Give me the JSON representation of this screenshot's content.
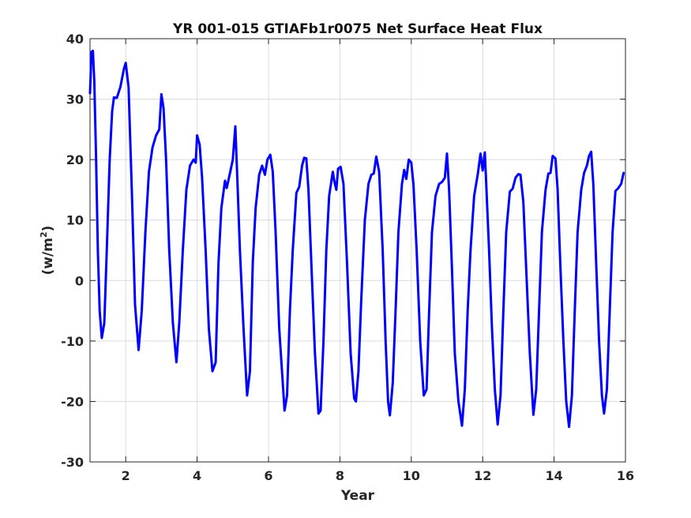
{
  "chart_data": {
    "type": "line",
    "title": "YR 001-015 GTIAFb1r0075 Net Surface Heat Flux",
    "xlabel": "Year",
    "ylabel_text": "(w/m",
    "ylabel_sup": "2",
    "ylabel_close": ")",
    "xlim": [
      1,
      16
    ],
    "ylim": [
      -30,
      40
    ],
    "x_ticks": [
      2,
      4,
      6,
      8,
      10,
      12,
      14,
      16
    ],
    "x_tick_labels": [
      "2",
      "4",
      "6",
      "8",
      "10",
      "12",
      "14",
      "16"
    ],
    "y_ticks": [
      -30,
      -20,
      -10,
      0,
      10,
      20,
      30,
      40
    ],
    "y_tick_labels": [
      "-30",
      "-20",
      "-10",
      "0",
      "10",
      "20",
      "30",
      "40"
    ],
    "grid": true,
    "series": [
      {
        "color": "#0000ff",
        "points": [
          [
            1.0,
            31
          ],
          [
            1.04,
            37.8
          ],
          [
            1.08,
            38
          ],
          [
            1.12,
            33
          ],
          [
            1.17,
            20
          ],
          [
            1.22,
            5
          ],
          [
            1.27,
            -5
          ],
          [
            1.33,
            -9.5
          ],
          [
            1.4,
            -7
          ],
          [
            1.47,
            5
          ],
          [
            1.55,
            20
          ],
          [
            1.62,
            28
          ],
          [
            1.67,
            30.3
          ],
          [
            1.75,
            30.2
          ],
          [
            1.85,
            32
          ],
          [
            1.95,
            35
          ],
          [
            2.0,
            36
          ],
          [
            2.08,
            32
          ],
          [
            2.17,
            15
          ],
          [
            2.26,
            -4
          ],
          [
            2.36,
            -11.5
          ],
          [
            2.45,
            -5
          ],
          [
            2.55,
            8
          ],
          [
            2.65,
            18
          ],
          [
            2.75,
            22
          ],
          [
            2.85,
            24
          ],
          [
            2.94,
            25
          ],
          [
            3.0,
            30.8
          ],
          [
            3.06,
            28.5
          ],
          [
            3.13,
            20
          ],
          [
            3.22,
            5
          ],
          [
            3.32,
            -7
          ],
          [
            3.42,
            -13.5
          ],
          [
            3.5,
            -7
          ],
          [
            3.6,
            5
          ],
          [
            3.7,
            15
          ],
          [
            3.8,
            19
          ],
          [
            3.9,
            20
          ],
          [
            3.96,
            19.5
          ],
          [
            4.0,
            24
          ],
          [
            4.07,
            22.5
          ],
          [
            4.14,
            17
          ],
          [
            4.24,
            5
          ],
          [
            4.33,
            -8
          ],
          [
            4.43,
            -15
          ],
          [
            4.52,
            -13.5
          ],
          [
            4.6,
            3
          ],
          [
            4.68,
            12
          ],
          [
            4.78,
            16.5
          ],
          [
            4.83,
            15.3
          ],
          [
            4.93,
            18
          ],
          [
            5.0,
            20
          ],
          [
            5.07,
            25.5
          ],
          [
            5.12,
            18
          ],
          [
            5.2,
            5
          ],
          [
            5.3,
            -8
          ],
          [
            5.4,
            -19
          ],
          [
            5.48,
            -15
          ],
          [
            5.56,
            3
          ],
          [
            5.64,
            12
          ],
          [
            5.74,
            17.5
          ],
          [
            5.82,
            19
          ],
          [
            5.9,
            17.5
          ],
          [
            5.97,
            20
          ],
          [
            6.05,
            20.8
          ],
          [
            6.12,
            18
          ],
          [
            6.2,
            8
          ],
          [
            6.3,
            -8
          ],
          [
            6.4,
            -17
          ],
          [
            6.45,
            -21.5
          ],
          [
            6.52,
            -19
          ],
          [
            6.6,
            -5
          ],
          [
            6.68,
            5
          ],
          [
            6.78,
            14.5
          ],
          [
            6.86,
            15.5
          ],
          [
            6.94,
            19
          ],
          [
            7.0,
            20.3
          ],
          [
            7.06,
            20.2
          ],
          [
            7.12,
            15
          ],
          [
            7.2,
            3
          ],
          [
            7.3,
            -12
          ],
          [
            7.4,
            -22
          ],
          [
            7.46,
            -21.5
          ],
          [
            7.54,
            -10
          ],
          [
            7.62,
            5
          ],
          [
            7.7,
            14
          ],
          [
            7.8,
            18
          ],
          [
            7.84,
            16.5
          ],
          [
            7.9,
            15
          ],
          [
            7.95,
            18.5
          ],
          [
            8.02,
            18.8
          ],
          [
            8.1,
            16
          ],
          [
            8.2,
            3
          ],
          [
            8.3,
            -12
          ],
          [
            8.4,
            -19.5
          ],
          [
            8.45,
            -20
          ],
          [
            8.52,
            -15
          ],
          [
            8.6,
            -3
          ],
          [
            8.7,
            10
          ],
          [
            8.8,
            16
          ],
          [
            8.88,
            17.5
          ],
          [
            8.95,
            17.7
          ],
          [
            9.02,
            20.5
          ],
          [
            9.1,
            18
          ],
          [
            9.2,
            5
          ],
          [
            9.28,
            -10
          ],
          [
            9.35,
            -20
          ],
          [
            9.4,
            -22.3
          ],
          [
            9.48,
            -17
          ],
          [
            9.56,
            -5
          ],
          [
            9.64,
            8
          ],
          [
            9.74,
            16
          ],
          [
            9.8,
            18.3
          ],
          [
            9.86,
            16.8
          ],
          [
            9.93,
            20
          ],
          [
            10.0,
            19.5
          ],
          [
            10.06,
            16
          ],
          [
            10.15,
            5
          ],
          [
            10.25,
            -10
          ],
          [
            10.35,
            -19
          ],
          [
            10.43,
            -18
          ],
          [
            10.5,
            -5
          ],
          [
            10.58,
            8
          ],
          [
            10.68,
            14
          ],
          [
            10.78,
            16
          ],
          [
            10.86,
            16.3
          ],
          [
            10.94,
            17
          ],
          [
            11.0,
            21
          ],
          [
            11.06,
            15
          ],
          [
            11.14,
            2
          ],
          [
            11.22,
            -12
          ],
          [
            11.32,
            -20
          ],
          [
            11.42,
            -24
          ],
          [
            11.5,
            -18
          ],
          [
            11.58,
            -5
          ],
          [
            11.66,
            5
          ],
          [
            11.76,
            14
          ],
          [
            11.86,
            17.5
          ],
          [
            11.94,
            21
          ],
          [
            12.0,
            18.2
          ],
          [
            12.06,
            21.2
          ],
          [
            12.1,
            16
          ],
          [
            12.18,
            5
          ],
          [
            12.26,
            -8
          ],
          [
            12.34,
            -18
          ],
          [
            12.42,
            -23.8
          ],
          [
            12.5,
            -19
          ],
          [
            12.58,
            -5
          ],
          [
            12.66,
            8
          ],
          [
            12.76,
            14.7
          ],
          [
            12.84,
            15.2
          ],
          [
            12.92,
            17
          ],
          [
            13.0,
            17.6
          ],
          [
            13.06,
            17.5
          ],
          [
            13.14,
            13
          ],
          [
            13.22,
            2
          ],
          [
            13.32,
            -12
          ],
          [
            13.42,
            -22.2
          ],
          [
            13.5,
            -18
          ],
          [
            13.58,
            -5
          ],
          [
            13.66,
            8
          ],
          [
            13.76,
            15
          ],
          [
            13.84,
            17.7
          ],
          [
            13.9,
            17.8
          ],
          [
            13.96,
            20.6
          ],
          [
            14.04,
            20.2
          ],
          [
            14.1,
            15
          ],
          [
            14.18,
            2
          ],
          [
            14.26,
            -10
          ],
          [
            14.34,
            -20
          ],
          [
            14.42,
            -24.2
          ],
          [
            14.5,
            -19
          ],
          [
            14.58,
            -5
          ],
          [
            14.66,
            8
          ],
          [
            14.76,
            15
          ],
          [
            14.84,
            17.8
          ],
          [
            14.92,
            19
          ],
          [
            14.98,
            20.6
          ],
          [
            15.04,
            21.3
          ],
          [
            15.1,
            16
          ],
          [
            15.18,
            3
          ],
          [
            15.26,
            -10
          ],
          [
            15.34,
            -19
          ],
          [
            15.4,
            -22
          ],
          [
            15.48,
            -18
          ],
          [
            15.56,
            -5
          ],
          [
            15.64,
            8
          ],
          [
            15.72,
            14.8
          ],
          [
            15.8,
            15.3
          ],
          [
            15.88,
            16
          ],
          [
            15.95,
            17.8
          ]
        ]
      }
    ]
  }
}
